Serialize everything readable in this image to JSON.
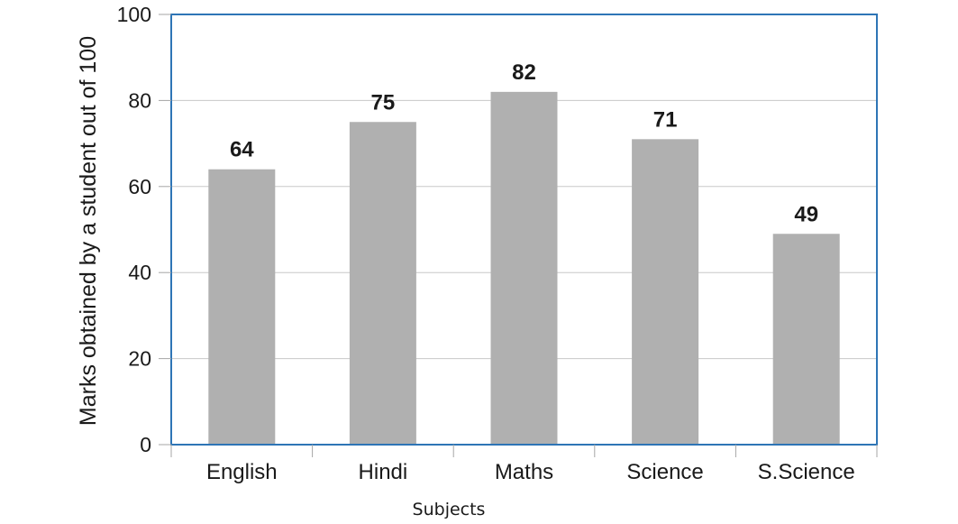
{
  "chart_data": {
    "type": "bar",
    "categories": [
      "English",
      "Hindi",
      "Maths",
      "Science",
      "S.Science"
    ],
    "values": [
      64,
      75,
      82,
      71,
      49
    ],
    "xlabel": "Subjects",
    "ylabel": "Marks obtained by a student out of 100",
    "ylim": [
      0,
      100
    ],
    "yticks": [
      0,
      20,
      40,
      60,
      80,
      100
    ],
    "grid": true,
    "colors": {
      "bar": "#b0b0b0",
      "frame": "#2e75b6",
      "grid": "#c8c8c8",
      "axis": "#a6a6a6"
    }
  }
}
